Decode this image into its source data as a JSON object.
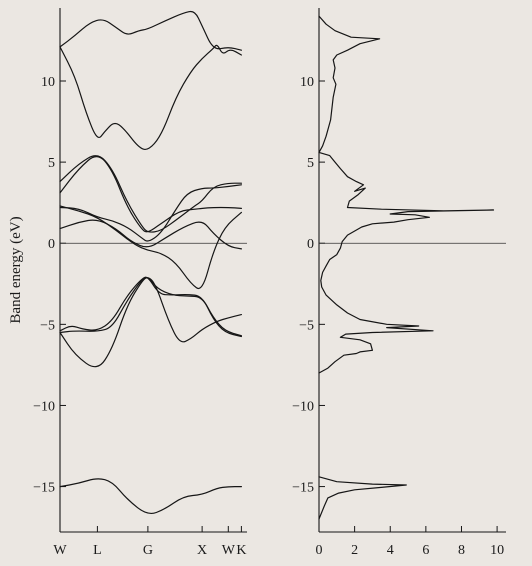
{
  "chart_data": [
    {
      "type": "line",
      "title": "",
      "ylabel": "Band energy (eV)",
      "xlabel": "",
      "xlim": [
        0,
        5
      ],
      "ylim": [
        -17.8,
        14.5
      ],
      "k_points": [
        {
          "label": "W",
          "x": 0
        },
        {
          "label": "L",
          "x": 1
        },
        {
          "label": "G",
          "x": 2.35
        },
        {
          "label": "X",
          "x": 3.8
        },
        {
          "label": "W",
          "x": 4.5
        },
        {
          "label": "K",
          "x": 4.85
        }
      ],
      "y_ticks": [
        {
          "label": "−15",
          "value": -15
        },
        {
          "label": "−10",
          "value": -10
        },
        {
          "label": "−5",
          "value": -5
        },
        {
          "label": "0",
          "value": 0
        },
        {
          "label": "5",
          "value": 5
        },
        {
          "label": "10",
          "value": 10
        }
      ],
      "zero_line": 0,
      "series": [
        {
          "points": [
            [
              0,
              -15
            ],
            [
              0.5,
              -14.8
            ],
            [
              1,
              -14.45
            ],
            [
              1.4,
              -14.7
            ],
            [
              1.8,
              -15.8
            ],
            [
              2.35,
              -16.8
            ],
            [
              2.8,
              -16.4
            ],
            [
              3.3,
              -15.6
            ],
            [
              3.8,
              -15.5
            ],
            [
              4.2,
              -15.1
            ],
            [
              4.5,
              -15
            ],
            [
              4.85,
              -15
            ]
          ]
        },
        {
          "points": [
            [
              0,
              -5.5
            ],
            [
              0.4,
              -6.9
            ],
            [
              1,
              -7.9
            ],
            [
              1.4,
              -6.5
            ],
            [
              1.8,
              -3.8
            ],
            [
              2.2,
              -2.3
            ],
            [
              2.35,
              -2.05
            ],
            [
              2.55,
              -2.5
            ],
            [
              2.9,
              -4.8
            ],
            [
              3.2,
              -6.2
            ],
            [
              3.5,
              -5.9
            ],
            [
              3.8,
              -5.3
            ],
            [
              4.2,
              -4.8
            ],
            [
              4.5,
              -4.6
            ],
            [
              4.85,
              -4.4
            ]
          ]
        },
        {
          "points": [
            [
              0,
              -5.5
            ],
            [
              0.4,
              -5.4
            ],
            [
              1,
              -5.45
            ],
            [
              1.4,
              -5.2
            ],
            [
              1.8,
              -3.5
            ],
            [
              2.2,
              -2.2
            ],
            [
              2.35,
              -2.05
            ],
            [
              2.6,
              -2.8
            ],
            [
              3,
              -3.2
            ],
            [
              3.4,
              -3.25
            ],
            [
              3.8,
              -3.3
            ],
            [
              4.1,
              -4.6
            ],
            [
              4.4,
              -5.4
            ],
            [
              4.85,
              -5.7
            ]
          ]
        },
        {
          "points": [
            [
              0,
              -5.4
            ],
            [
              0.3,
              -5.05
            ],
            [
              0.6,
              -5.3
            ],
            [
              1,
              -5.4
            ],
            [
              1.4,
              -4.8
            ],
            [
              1.8,
              -3.2
            ],
            [
              2.2,
              -2.15
            ],
            [
              2.35,
              -2.05
            ],
            [
              2.65,
              -3.15
            ],
            [
              3,
              -3.2
            ],
            [
              3.4,
              -3.15
            ],
            [
              3.8,
              -3.25
            ],
            [
              4.1,
              -4.7
            ],
            [
              4.4,
              -5.5
            ],
            [
              4.85,
              -5.75
            ]
          ]
        },
        {
          "points": [
            [
              0,
              3.1
            ],
            [
              0.5,
              4.6
            ],
            [
              1,
              5.6
            ],
            [
              1.4,
              4.5
            ],
            [
              1.8,
              2.2
            ],
            [
              2.2,
              0.8
            ],
            [
              2.35,
              0.65
            ],
            [
              2.7,
              1.2
            ],
            [
              3.2,
              2.0
            ],
            [
              3.6,
              2.1
            ],
            [
              3.8,
              2.15
            ],
            [
              4.1,
              2.2
            ],
            [
              4.5,
              2.2
            ],
            [
              4.85,
              2.15
            ]
          ]
        },
        {
          "points": [
            [
              0,
              3.8
            ],
            [
              0.5,
              4.9
            ],
            [
              1,
              5.6
            ],
            [
              1.4,
              4.6
            ],
            [
              1.8,
              2.5
            ],
            [
              2.2,
              1.0
            ],
            [
              2.35,
              0.65
            ],
            [
              2.7,
              0.75
            ],
            [
              3.2,
              1.6
            ],
            [
              3.6,
              2.3
            ],
            [
              3.8,
              2.6
            ],
            [
              4.1,
              3.5
            ],
            [
              4.5,
              3.7
            ],
            [
              4.85,
              3.7
            ]
          ]
        },
        {
          "points": [
            [
              0,
              2.3
            ],
            [
              0.5,
              2.0
            ],
            [
              1,
              1.6
            ],
            [
              1.5,
              0.8
            ],
            [
              2,
              -0.1
            ],
            [
              2.35,
              -0.45
            ],
            [
              2.7,
              -0.6
            ],
            [
              3.1,
              -1.2
            ],
            [
              3.5,
              -2.5
            ],
            [
              3.8,
              -3.0
            ],
            [
              4.1,
              -0.5
            ],
            [
              4.4,
              1.0
            ],
            [
              4.85,
              1.9
            ]
          ]
        },
        {
          "points": [
            [
              0,
              2.2
            ],
            [
              0.5,
              2.15
            ],
            [
              1,
              1.6
            ],
            [
              1.4,
              1.4
            ],
            [
              1.8,
              1.0
            ],
            [
              2.2,
              0.3
            ],
            [
              2.35,
              0.05
            ],
            [
              2.7,
              0.6
            ],
            [
              3.1,
              2.1
            ],
            [
              3.4,
              3.1
            ],
            [
              3.8,
              3.4
            ],
            [
              4.1,
              3.4
            ],
            [
              4.5,
              3.5
            ],
            [
              4.85,
              3.6
            ]
          ]
        },
        {
          "points": [
            [
              0,
              0.9
            ],
            [
              0.5,
              1.3
            ],
            [
              1,
              1.5
            ],
            [
              1.5,
              0.9
            ],
            [
              1.9,
              0.1
            ],
            [
              2.35,
              -0.35
            ],
            [
              2.8,
              0.3
            ],
            [
              3.3,
              1.0
            ],
            [
              3.8,
              1.45
            ],
            [
              4.1,
              0.6
            ],
            [
              4.5,
              -0.2
            ],
            [
              4.85,
              -0.35
            ]
          ]
        },
        {
          "points": [
            [
              0,
              12.1
            ],
            [
              0.4,
              10.3
            ],
            [
              0.7,
              8.0
            ],
            [
              1,
              6.3
            ],
            [
              1.2,
              6.9
            ],
            [
              1.45,
              7.5
            ],
            [
              1.7,
              7.1
            ],
            [
              2.1,
              5.9
            ],
            [
              2.35,
              5.7
            ],
            [
              2.7,
              6.6
            ],
            [
              3.1,
              9.0
            ],
            [
              3.5,
              10.6
            ],
            [
              3.8,
              11.4
            ],
            [
              4.1,
              12.0
            ],
            [
              4.2,
              12.3
            ],
            [
              4.35,
              11.6
            ],
            [
              4.55,
              12.0
            ],
            [
              4.85,
              11.6
            ]
          ]
        },
        {
          "points": [
            [
              0,
              12.1
            ],
            [
              0.4,
              12.8
            ],
            [
              0.8,
              13.6
            ],
            [
              1.15,
              13.85
            ],
            [
              1.5,
              13.3
            ],
            [
              1.8,
              12.8
            ],
            [
              2.1,
              13.1
            ],
            [
              2.35,
              13.2
            ],
            [
              2.8,
              13.7
            ],
            [
              3.3,
              14.2
            ],
            [
              3.6,
              14.35
            ],
            [
              3.8,
              13.4
            ],
            [
              4.1,
              11.9
            ],
            [
              4.5,
              12.1
            ],
            [
              4.85,
              11.9
            ]
          ]
        }
      ]
    },
    {
      "type": "line",
      "title": "",
      "xlabel": "",
      "ylabel": "",
      "xlim": [
        0,
        10.5
      ],
      "ylim": [
        -17.8,
        14.5
      ],
      "x_ticks": [
        {
          "label": "0",
          "value": 0
        },
        {
          "label": "2",
          "value": 2
        },
        {
          "label": "4",
          "value": 4
        },
        {
          "label": "6",
          "value": 6
        },
        {
          "label": "8",
          "value": 8
        },
        {
          "label": "10",
          "value": 10
        }
      ],
      "y_ticks": [
        {
          "label": "−15",
          "value": -15
        },
        {
          "label": "−10",
          "value": -10
        },
        {
          "label": "−5",
          "value": -5
        },
        {
          "label": "0",
          "value": 0
        },
        {
          "label": "5",
          "value": 5
        },
        {
          "label": "10",
          "value": 10
        }
      ],
      "zero_line": 0,
      "series": [
        {
          "points": [
            [
              0,
              14
            ],
            [
              0.4,
              13.5
            ],
            [
              0.9,
              13.1
            ],
            [
              1.8,
              12.7
            ],
            [
              3.4,
              12.6
            ],
            [
              2.3,
              12.3
            ],
            [
              1.6,
              11.9
            ],
            [
              1.0,
              11.6
            ],
            [
              0.8,
              11.3
            ],
            [
              0.9,
              10.8
            ],
            [
              0.8,
              10.2
            ],
            [
              0.95,
              9.8
            ],
            [
              0.8,
              9.0
            ],
            [
              0.65,
              7.6
            ],
            [
              0.4,
              6.6
            ],
            [
              0.2,
              6.0
            ],
            [
              0,
              5.6
            ],
            [
              0.6,
              5.4
            ],
            [
              0.9,
              5.0
            ],
            [
              1.2,
              4.6
            ],
            [
              1.6,
              4.1
            ],
            [
              2.1,
              3.8
            ],
            [
              2.5,
              3.6
            ],
            [
              2.0,
              3.2
            ],
            [
              2.6,
              3.4
            ],
            [
              2.2,
              3.0
            ],
            [
              1.7,
              2.6
            ],
            [
              1.6,
              2.2
            ],
            [
              3.5,
              2.1
            ],
            [
              7,
              2.0
            ],
            [
              9.8,
              2.05
            ],
            [
              5.0,
              1.95
            ],
            [
              4.0,
              1.8
            ],
            [
              5.4,
              1.75
            ],
            [
              6.2,
              1.6
            ],
            [
              5.0,
              1.45
            ],
            [
              4.2,
              1.3
            ],
            [
              3.0,
              1.2
            ],
            [
              2.4,
              1.0
            ],
            [
              1.6,
              0.5
            ],
            [
              1.3,
              0.1
            ],
            [
              1.2,
              -0.3
            ],
            [
              1.0,
              -0.7
            ],
            [
              0.6,
              -1.0
            ],
            [
              0.4,
              -1.4
            ],
            [
              0.2,
              -1.8
            ],
            [
              0.1,
              -2.3
            ],
            [
              0.15,
              -2.7
            ],
            [
              0.4,
              -3.2
            ],
            [
              1.0,
              -3.8
            ],
            [
              1.6,
              -4.3
            ],
            [
              2.3,
              -4.7
            ],
            [
              3.8,
              -5.0
            ],
            [
              5.6,
              -5.1
            ],
            [
              3.8,
              -5.2
            ],
            [
              6.4,
              -5.4
            ],
            [
              3.0,
              -5.5
            ],
            [
              1.5,
              -5.6
            ],
            [
              1.2,
              -5.8
            ],
            [
              2.3,
              -5.95
            ],
            [
              2.9,
              -6.2
            ],
            [
              3.0,
              -6.6
            ],
            [
              2.3,
              -6.7
            ],
            [
              2.1,
              -6.8
            ],
            [
              1.4,
              -6.9
            ],
            [
              0.9,
              -7.3
            ],
            [
              0.5,
              -7.7
            ],
            [
              0,
              -8.0
            ]
          ]
        },
        {
          "points": [
            [
              0,
              -14.4
            ],
            [
              1.0,
              -14.7
            ],
            [
              3.0,
              -14.85
            ],
            [
              4.9,
              -14.9
            ],
            [
              3.5,
              -15.05
            ],
            [
              2.0,
              -15.2
            ],
            [
              1.1,
              -15.4
            ],
            [
              0.5,
              -15.7
            ],
            [
              0.3,
              -16.2
            ],
            [
              0,
              -17.0
            ]
          ]
        }
      ]
    }
  ]
}
